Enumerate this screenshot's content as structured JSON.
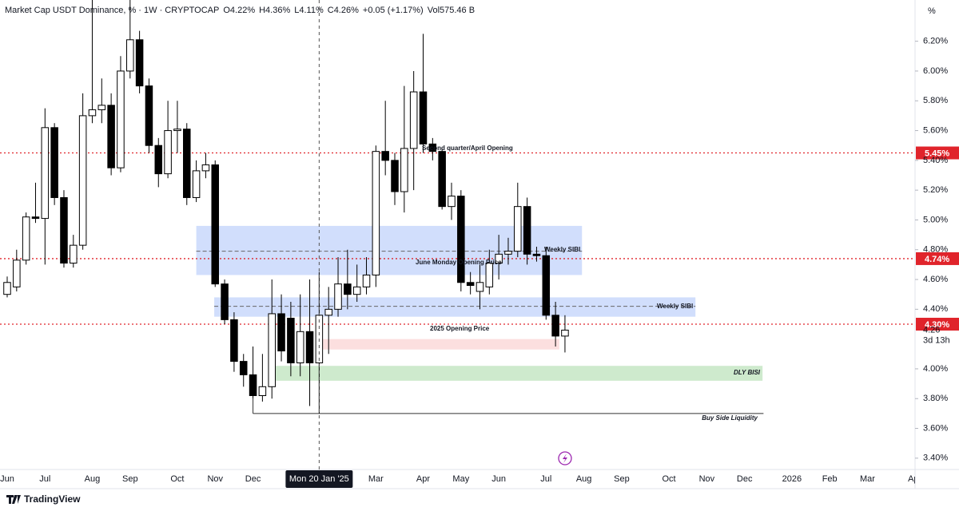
{
  "chart_data": {
    "type": "candlestick",
    "title": "Market Cap USDT Dominance, % · 1W · CRYPTOCAP",
    "legend_values": [
      "O4.22%",
      "H4.36%",
      "L4.11%",
      "C4.26%",
      "+0.05 (+1.17%)",
      "Vol575.46 B"
    ],
    "y_unit": "%",
    "x": [
      0,
      1,
      2,
      3,
      4,
      5,
      6,
      7,
      8,
      9,
      10,
      11,
      12,
      13,
      14,
      15,
      16,
      17,
      18,
      19,
      20,
      21,
      22,
      23,
      24,
      25,
      26,
      27,
      28,
      29,
      30,
      31,
      32,
      33,
      34,
      35,
      36,
      37,
      38,
      39,
      40,
      41,
      42,
      43,
      44,
      45,
      46,
      47,
      48,
      49,
      50,
      51,
      52,
      53,
      54,
      55,
      56,
      57,
      58,
      59
    ],
    "open": [
      4.5,
      4.55,
      4.73,
      5.02,
      5.01,
      5.62,
      5.15,
      4.71,
      4.83,
      5.7,
      5.74,
      5.77,
      5.35,
      6.0,
      6.21,
      5.9,
      5.5,
      5.31,
      5.6,
      5.61,
      5.15,
      5.33,
      5.37,
      4.57,
      4.33,
      4.05,
      3.96,
      3.82,
      3.88,
      4.37,
      4.34,
      4.04,
      4.25,
      4.04,
      4.36,
      4.4,
      4.57,
      4.5,
      4.55,
      4.63,
      5.46,
      5.4,
      5.19,
      5.48,
      5.86,
      5.51,
      5.46,
      5.09,
      5.16,
      4.58,
      4.52,
      4.55,
      4.71,
      4.77,
      4.79,
      5.09,
      4.77,
      4.76,
      4.36,
      4.22
    ],
    "high": [
      4.62,
      4.8,
      5.05,
      5.25,
      5.75,
      5.65,
      5.2,
      4.9,
      5.85,
      6.55,
      5.95,
      5.85,
      6.1,
      6.55,
      6.27,
      5.95,
      5.55,
      5.8,
      5.8,
      5.65,
      5.4,
      5.45,
      5.4,
      4.6,
      4.38,
      4.1,
      4.15,
      4.1,
      4.6,
      4.5,
      4.45,
      4.5,
      4.6,
      4.65,
      4.55,
      4.75,
      4.8,
      4.7,
      4.75,
      5.5,
      5.8,
      5.45,
      5.9,
      6.0,
      6.25,
      5.55,
      5.48,
      5.25,
      5.2,
      4.65,
      4.7,
      4.8,
      4.9,
      4.88,
      5.25,
      5.15,
      4.82,
      4.82,
      4.45,
      4.36
    ],
    "low": [
      4.48,
      4.52,
      4.7,
      4.98,
      4.7,
      5.1,
      4.68,
      4.68,
      4.8,
      5.65,
      5.65,
      5.3,
      5.32,
      5.95,
      5.85,
      5.45,
      5.22,
      5.28,
      5.45,
      5.1,
      5.12,
      5.28,
      4.55,
      4.3,
      3.98,
      3.88,
      3.8,
      3.78,
      3.8,
      4.05,
      3.95,
      3.95,
      3.75,
      3.7,
      4.1,
      4.35,
      4.4,
      4.45,
      4.5,
      4.55,
      5.3,
      5.1,
      5.05,
      5.2,
      5.45,
      5.4,
      5.07,
      5.0,
      4.52,
      4.5,
      4.4,
      4.5,
      4.6,
      4.7,
      4.75,
      4.7,
      4.72,
      4.33,
      4.15,
      4.11
    ],
    "close": [
      4.58,
      4.73,
      5.02,
      5.01,
      5.62,
      5.15,
      4.71,
      4.83,
      5.7,
      5.74,
      5.77,
      5.35,
      6.0,
      6.21,
      5.9,
      5.5,
      5.31,
      5.6,
      5.61,
      5.15,
      5.33,
      5.37,
      4.57,
      4.33,
      4.05,
      3.96,
      3.82,
      3.88,
      4.37,
      4.12,
      4.04,
      4.25,
      4.04,
      4.36,
      4.4,
      4.57,
      4.5,
      4.55,
      4.63,
      5.46,
      5.4,
      5.19,
      5.48,
      5.86,
      5.51,
      5.46,
      5.09,
      5.16,
      4.58,
      4.56,
      4.58,
      4.71,
      4.77,
      4.79,
      5.09,
      4.77,
      4.76,
      4.36,
      4.22,
      4.26
    ],
    "up_color": "#ffffff",
    "down_color": "#000000",
    "xlim": [
      -0.76,
      96.03
    ],
    "ylim": [
      3.324,
      6.477
    ],
    "yticks": [
      {
        "value": 3.4,
        "label": "3.40%"
      },
      {
        "value": 3.6,
        "label": "3.60%"
      },
      {
        "value": 3.8,
        "label": "3.80%"
      },
      {
        "value": 4.0,
        "label": "4.00%"
      },
      {
        "value": 4.4,
        "label": "4.40%"
      },
      {
        "value": 4.6,
        "label": "4.60%"
      },
      {
        "value": 4.8,
        "label": "4.80%"
      },
      {
        "value": 5.0,
        "label": "5.00%"
      },
      {
        "value": 5.2,
        "label": "5.20%"
      },
      {
        "value": 5.4,
        "label": "5.40%"
      },
      {
        "value": 5.6,
        "label": "5.60%"
      },
      {
        "value": 5.8,
        "label": "5.80%"
      },
      {
        "value": 6.0,
        "label": "6.00%"
      },
      {
        "value": 6.2,
        "label": "6.20%"
      }
    ],
    "xticks": [
      {
        "value": 0,
        "label": "Jun"
      },
      {
        "value": 4,
        "label": "Jul"
      },
      {
        "value": 9,
        "label": "Aug"
      },
      {
        "value": 13,
        "label": "Sep"
      },
      {
        "value": 18,
        "label": "Oct"
      },
      {
        "value": 22,
        "label": "Nov"
      },
      {
        "value": 26,
        "label": "Dec"
      },
      {
        "value": 39,
        "label": "Mar"
      },
      {
        "value": 44,
        "label": "Apr"
      },
      {
        "value": 48,
        "label": "May"
      },
      {
        "value": 52,
        "label": "Jun"
      },
      {
        "value": 57,
        "label": "Jul"
      },
      {
        "value": 61,
        "label": "Aug"
      },
      {
        "value": 65,
        "label": "Sep"
      },
      {
        "value": 70,
        "label": "Oct"
      },
      {
        "value": 74,
        "label": "Nov"
      },
      {
        "value": 78,
        "label": "Dec"
      },
      {
        "value": 83,
        "label": "2026"
      },
      {
        "value": 87,
        "label": "Feb"
      },
      {
        "value": 91,
        "label": "Mar"
      },
      {
        "value": 96,
        "label": "Apr"
      }
    ],
    "crosshair": {
      "value": 33,
      "label": "Mon 20 Jan '25"
    },
    "price_lines": [
      {
        "value": 5.45,
        "label": "5.45%"
      },
      {
        "value": 4.74,
        "label": "4.74%"
      },
      {
        "value": 4.3,
        "label": "4.30%"
      }
    ],
    "price_line_color": "#e0242b",
    "last_price": {
      "value": 4.26,
      "label": "4.26",
      "countdown": "3d 13h"
    },
    "zones": [
      {
        "top": 4.96,
        "bottom": 4.63,
        "from": 20,
        "to": 60.8,
        "color": "#c9d8fb"
      },
      {
        "top": 4.48,
        "bottom": 4.35,
        "from": 21.9,
        "to": 72.8,
        "color": "#c9d8fb"
      },
      {
        "top": 4.2,
        "bottom": 4.13,
        "from": 32.9,
        "to": 58.4,
        "color": "#fcd9d9"
      },
      {
        "top": 4.02,
        "bottom": 3.92,
        "from": 28.2,
        "to": 79.9,
        "color": "#c5e6c4"
      }
    ],
    "levels": [
      {
        "value": 4.79,
        "from": 20,
        "to": 60.8
      },
      {
        "value": 4.42,
        "from": 21.9,
        "to": 72.8
      },
      {
        "value": 3.7,
        "from": 26,
        "to": 80
      }
    ],
    "annotations": [
      "Second quarter/April Opening",
      "June Monday Opening Price",
      "Weekly SIBI",
      "Weekly SIBI",
      "2025 Opening Price",
      "DLY BISI",
      "Buy Side Liquidity"
    ],
    "footer": "TradingView"
  }
}
